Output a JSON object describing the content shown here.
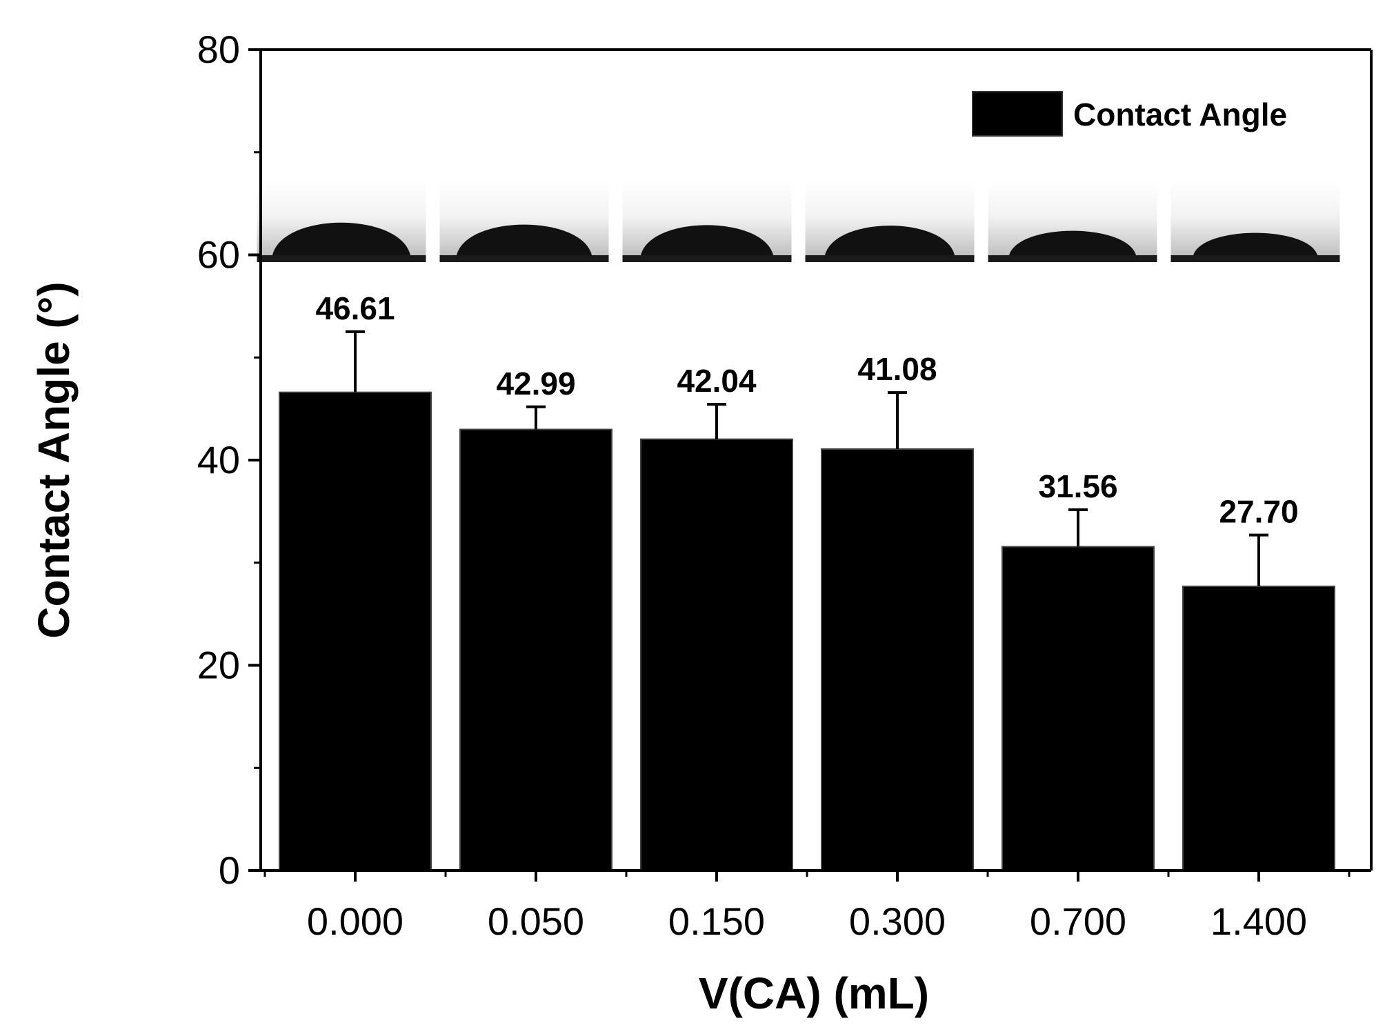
{
  "chart_data": {
    "type": "bar",
    "xlabel": "V(CA) (mL)",
    "ylabel": "Contact Angle (°)",
    "categories": [
      "0.000",
      "0.050",
      "0.150",
      "0.300",
      "0.700",
      "1.400"
    ],
    "series": [
      {
        "name": "Contact Angle",
        "values": [
          46.61,
          42.99,
          42.04,
          41.08,
          31.56,
          27.7
        ],
        "error_plus": [
          5.9,
          2.2,
          3.4,
          5.5,
          3.6,
          5.0
        ],
        "data_labels": [
          "46.61",
          "42.99",
          "42.04",
          "41.08",
          "31.56",
          "27.70"
        ]
      }
    ],
    "ylim": [
      0,
      80
    ],
    "yticks": [
      0,
      20,
      40,
      60,
      80
    ],
    "legend": "top-right",
    "grid": false,
    "inset_images": "water droplet photographs above each bar",
    "colors": {
      "bar": "#000000",
      "axis": "#000000"
    }
  }
}
